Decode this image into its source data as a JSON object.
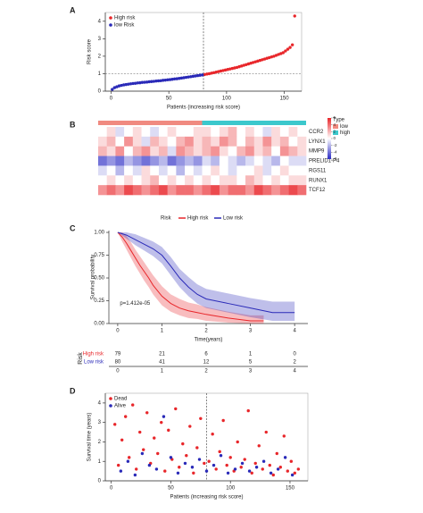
{
  "chart_data": [
    {
      "type": "scatter",
      "panel_label": "A",
      "xlabel": "Patients (increasing risk score)",
      "ylabel": "Risk score",
      "xlim": [
        -5,
        165
      ],
      "ylim": [
        0,
        4.5
      ],
      "xticks": [
        0,
        50,
        100,
        150
      ],
      "yticks": [
        0,
        1,
        2,
        3,
        4
      ],
      "vline": 80,
      "hline": 1,
      "series": [
        {
          "name": "High risk",
          "color": "#e8262a",
          "x": [
            81,
            83,
            85,
            87,
            89,
            91,
            93,
            95,
            97,
            99,
            101,
            103,
            105,
            107,
            109,
            111,
            113,
            115,
            117,
            119,
            121,
            123,
            125,
            127,
            129,
            131,
            133,
            135,
            137,
            139,
            141,
            143,
            145,
            147,
            149,
            151,
            153,
            155,
            157,
            159
          ],
          "values": [
            0.95,
            0.98,
            1.0,
            1.03,
            1.06,
            1.09,
            1.12,
            1.15,
            1.18,
            1.21,
            1.24,
            1.27,
            1.3,
            1.33,
            1.36,
            1.4,
            1.44,
            1.48,
            1.52,
            1.56,
            1.6,
            1.64,
            1.68,
            1.72,
            1.76,
            1.8,
            1.84,
            1.88,
            1.92,
            1.96,
            2.0,
            2.05,
            2.1,
            2.15,
            2.2,
            2.3,
            2.4,
            2.5,
            2.65,
            4.3
          ]
        },
        {
          "name": "low Risk",
          "color": "#2a2ab8",
          "x": [
            1,
            3,
            5,
            7,
            9,
            11,
            13,
            15,
            17,
            19,
            21,
            23,
            25,
            27,
            29,
            31,
            33,
            35,
            37,
            39,
            41,
            43,
            45,
            47,
            49,
            51,
            53,
            55,
            57,
            59,
            61,
            63,
            65,
            67,
            69,
            71,
            73,
            75,
            77,
            79
          ],
          "values": [
            0.1,
            0.2,
            0.25,
            0.3,
            0.33,
            0.36,
            0.38,
            0.4,
            0.42,
            0.44,
            0.45,
            0.47,
            0.48,
            0.5,
            0.51,
            0.52,
            0.54,
            0.55,
            0.56,
            0.58,
            0.59,
            0.6,
            0.62,
            0.63,
            0.65,
            0.66,
            0.68,
            0.7,
            0.71,
            0.73,
            0.75,
            0.77,
            0.79,
            0.81,
            0.83,
            0.85,
            0.87,
            0.89,
            0.91,
            0.93
          ]
        }
      ]
    },
    {
      "type": "heatmap",
      "panel_label": "B",
      "legend_title": "Type",
      "groups": [
        {
          "name": "low",
          "color": "#f08a80",
          "count": 12
        },
        {
          "name": "high",
          "color": "#3cc8cc",
          "count": 12
        }
      ],
      "zlim": [
        -6,
        6
      ],
      "colorbar_ticks": [
        6,
        4,
        2,
        0,
        -2,
        -4,
        -6
      ],
      "low_color": "#2b2bc4",
      "mid_color": "#ffffff",
      "high_color": "#e8262a",
      "rows": [
        "CCR2",
        "LYNX1",
        "MMP9",
        "PRELID1-P4",
        "RGS11",
        "RUNX1",
        "TCF12"
      ],
      "matrix": [
        [
          0,
          1,
          -1,
          0,
          1,
          0,
          -1,
          0,
          1,
          0,
          0,
          1,
          1,
          0,
          1,
          2,
          0,
          1,
          0,
          -1,
          1,
          0,
          1,
          0
        ],
        [
          1,
          2,
          0,
          3,
          1,
          -1,
          2,
          1,
          0,
          2,
          3,
          1,
          2,
          1,
          3,
          2,
          0,
          2,
          1,
          3,
          1,
          2,
          0,
          1
        ],
        [
          2,
          1,
          3,
          0,
          2,
          3,
          1,
          2,
          -1,
          3,
          2,
          1,
          2,
          3,
          1,
          0,
          2,
          3,
          1,
          2,
          0,
          3,
          2,
          1
        ],
        [
          -4,
          -3,
          -4,
          -2,
          -3,
          -4,
          -3,
          -2,
          -4,
          -3,
          -2,
          -3,
          -1,
          -2,
          0,
          -1,
          -2,
          -1,
          0,
          -1,
          -2,
          0,
          -1,
          -1
        ],
        [
          -1,
          0,
          -2,
          0,
          -1,
          1,
          0,
          -1,
          0,
          -2,
          0,
          -1,
          0,
          1,
          0,
          -1,
          0,
          0,
          1,
          -1,
          0,
          1,
          0,
          0
        ],
        [
          0,
          1,
          0,
          1,
          0,
          1,
          2,
          0,
          1,
          0,
          1,
          0,
          1,
          0,
          1,
          1,
          0,
          2,
          1,
          0,
          1,
          0,
          1,
          1
        ],
        [
          3,
          4,
          3,
          5,
          4,
          3,
          4,
          5,
          3,
          4,
          4,
          3,
          4,
          5,
          3,
          4,
          4,
          3,
          5,
          4,
          3,
          4,
          5,
          4
        ]
      ]
    },
    {
      "type": "survival",
      "panel_label": "C",
      "legend_title": "Risk",
      "xlabel": "Time(years)",
      "ylabel": "Survival probability",
      "annotation": "p=1.412e-05",
      "xlim": [
        -0.2,
        4.3
      ],
      "ylim": [
        0,
        1.02
      ],
      "xticks": [
        0,
        1,
        2,
        3,
        4
      ],
      "yticks": [
        {
          "value": 0,
          "label": "0.00"
        },
        {
          "value": 0.25,
          "label": "0.25"
        },
        {
          "value": 0.5,
          "label": "0.50"
        },
        {
          "value": 0.75,
          "label": "0.75"
        },
        {
          "value": 1,
          "label": "1.00"
        }
      ],
      "series": [
        {
          "name": "High risk",
          "color": "#e8262a",
          "x": [
            0,
            0.1,
            0.2,
            0.3,
            0.4,
            0.5,
            0.6,
            0.7,
            0.8,
            0.9,
            1.0,
            1.2,
            1.4,
            1.6,
            1.8,
            2.0,
            2.5,
            3.0,
            3.3
          ],
          "values": [
            1,
            0.95,
            0.88,
            0.8,
            0.72,
            0.64,
            0.57,
            0.5,
            0.42,
            0.36,
            0.3,
            0.22,
            0.17,
            0.14,
            0.12,
            0.1,
            0.06,
            0.03,
            0.03
          ],
          "lower": [
            1,
            0.9,
            0.81,
            0.72,
            0.63,
            0.55,
            0.47,
            0.4,
            0.32,
            0.26,
            0.2,
            0.13,
            0.09,
            0.06,
            0.05,
            0.03,
            0.01,
            0,
            0
          ],
          "upper": [
            1,
            1,
            0.96,
            0.89,
            0.81,
            0.74,
            0.67,
            0.6,
            0.53,
            0.47,
            0.41,
            0.32,
            0.27,
            0.23,
            0.21,
            0.18,
            0.13,
            0.09,
            0.09
          ]
        },
        {
          "name": "Low risk",
          "color": "#2a2ab8",
          "x": [
            0,
            0.2,
            0.4,
            0.6,
            0.8,
            1.0,
            1.2,
            1.4,
            1.6,
            1.8,
            2.0,
            2.5,
            3.0,
            3.5,
            4.0
          ],
          "values": [
            1,
            0.97,
            0.92,
            0.87,
            0.82,
            0.75,
            0.63,
            0.5,
            0.4,
            0.32,
            0.27,
            0.22,
            0.17,
            0.12,
            0.12
          ],
          "lower": [
            1,
            0.93,
            0.86,
            0.8,
            0.74,
            0.66,
            0.53,
            0.4,
            0.3,
            0.22,
            0.17,
            0.12,
            0.07,
            0.03,
            0.03
          ],
          "upper": [
            1,
            1,
            0.98,
            0.94,
            0.9,
            0.84,
            0.73,
            0.6,
            0.51,
            0.43,
            0.38,
            0.33,
            0.28,
            0.24,
            0.24
          ]
        }
      ],
      "risk_table": {
        "title": "Risk",
        "rows": [
          {
            "name": "High risk",
            "counts": [
              79,
              21,
              6,
              1,
              0
            ]
          },
          {
            "name": "Low risk",
            "counts": [
              80,
              41,
              12,
              5,
              2
            ]
          }
        ]
      }
    },
    {
      "type": "scatter",
      "panel_label": "D",
      "xlabel": "Patients (increasing risk score)",
      "ylabel": "Survival time (years)",
      "xlim": [
        -5,
        165
      ],
      "ylim": [
        0,
        4.5
      ],
      "xticks": [
        0,
        50,
        100,
        150
      ],
      "yticks": [
        0,
        1,
        2,
        3,
        4
      ],
      "vline": 80,
      "series": [
        {
          "name": "Dead",
          "color": "#e8262a",
          "x": [
            3,
            6,
            9,
            12,
            15,
            18,
            21,
            24,
            27,
            30,
            33,
            36,
            39,
            42,
            45,
            48,
            51,
            54,
            57,
            60,
            63,
            66,
            69,
            72,
            75,
            78,
            82,
            85,
            88,
            91,
            94,
            97,
            100,
            103,
            106,
            109,
            112,
            115,
            118,
            121,
            124,
            127,
            130,
            133,
            136,
            139,
            142,
            145,
            148,
            151,
            154,
            157
          ],
          "values": [
            2.9,
            0.8,
            2.1,
            3.3,
            1.2,
            3.9,
            0.6,
            2.5,
            1.6,
            3.5,
            0.9,
            2.2,
            1.4,
            3.0,
            0.5,
            2.6,
            1.1,
            3.7,
            0.7,
            1.9,
            1.3,
            2.8,
            0.4,
            1.7,
            3.2,
            0.9,
            1.0,
            2.4,
            0.6,
            1.5,
            3.1,
            0.8,
            1.2,
            0.5,
            2.0,
            0.7,
            1.1,
            3.6,
            0.4,
            0.9,
            1.8,
            0.6,
            2.5,
            0.8,
            0.3,
            1.4,
            0.7,
            2.3,
            0.5,
            1.0,
            0.4,
            0.6
          ]
        },
        {
          "name": "Alive",
          "color": "#2a2ab8",
          "x": [
            8,
            14,
            20,
            26,
            32,
            38,
            44,
            50,
            56,
            62,
            68,
            74,
            80,
            86,
            92,
            98,
            104,
            110,
            116,
            122,
            128,
            134,
            140,
            146,
            152
          ],
          "values": [
            0.5,
            1.0,
            0.3,
            1.4,
            0.8,
            0.6,
            3.3,
            1.2,
            0.4,
            0.9,
            0.7,
            1.1,
            0.5,
            0.8,
            1.3,
            0.4,
            0.6,
            0.9,
            0.5,
            0.7,
            1.0,
            0.4,
            0.6,
            1.2,
            0.3
          ]
        }
      ]
    }
  ]
}
